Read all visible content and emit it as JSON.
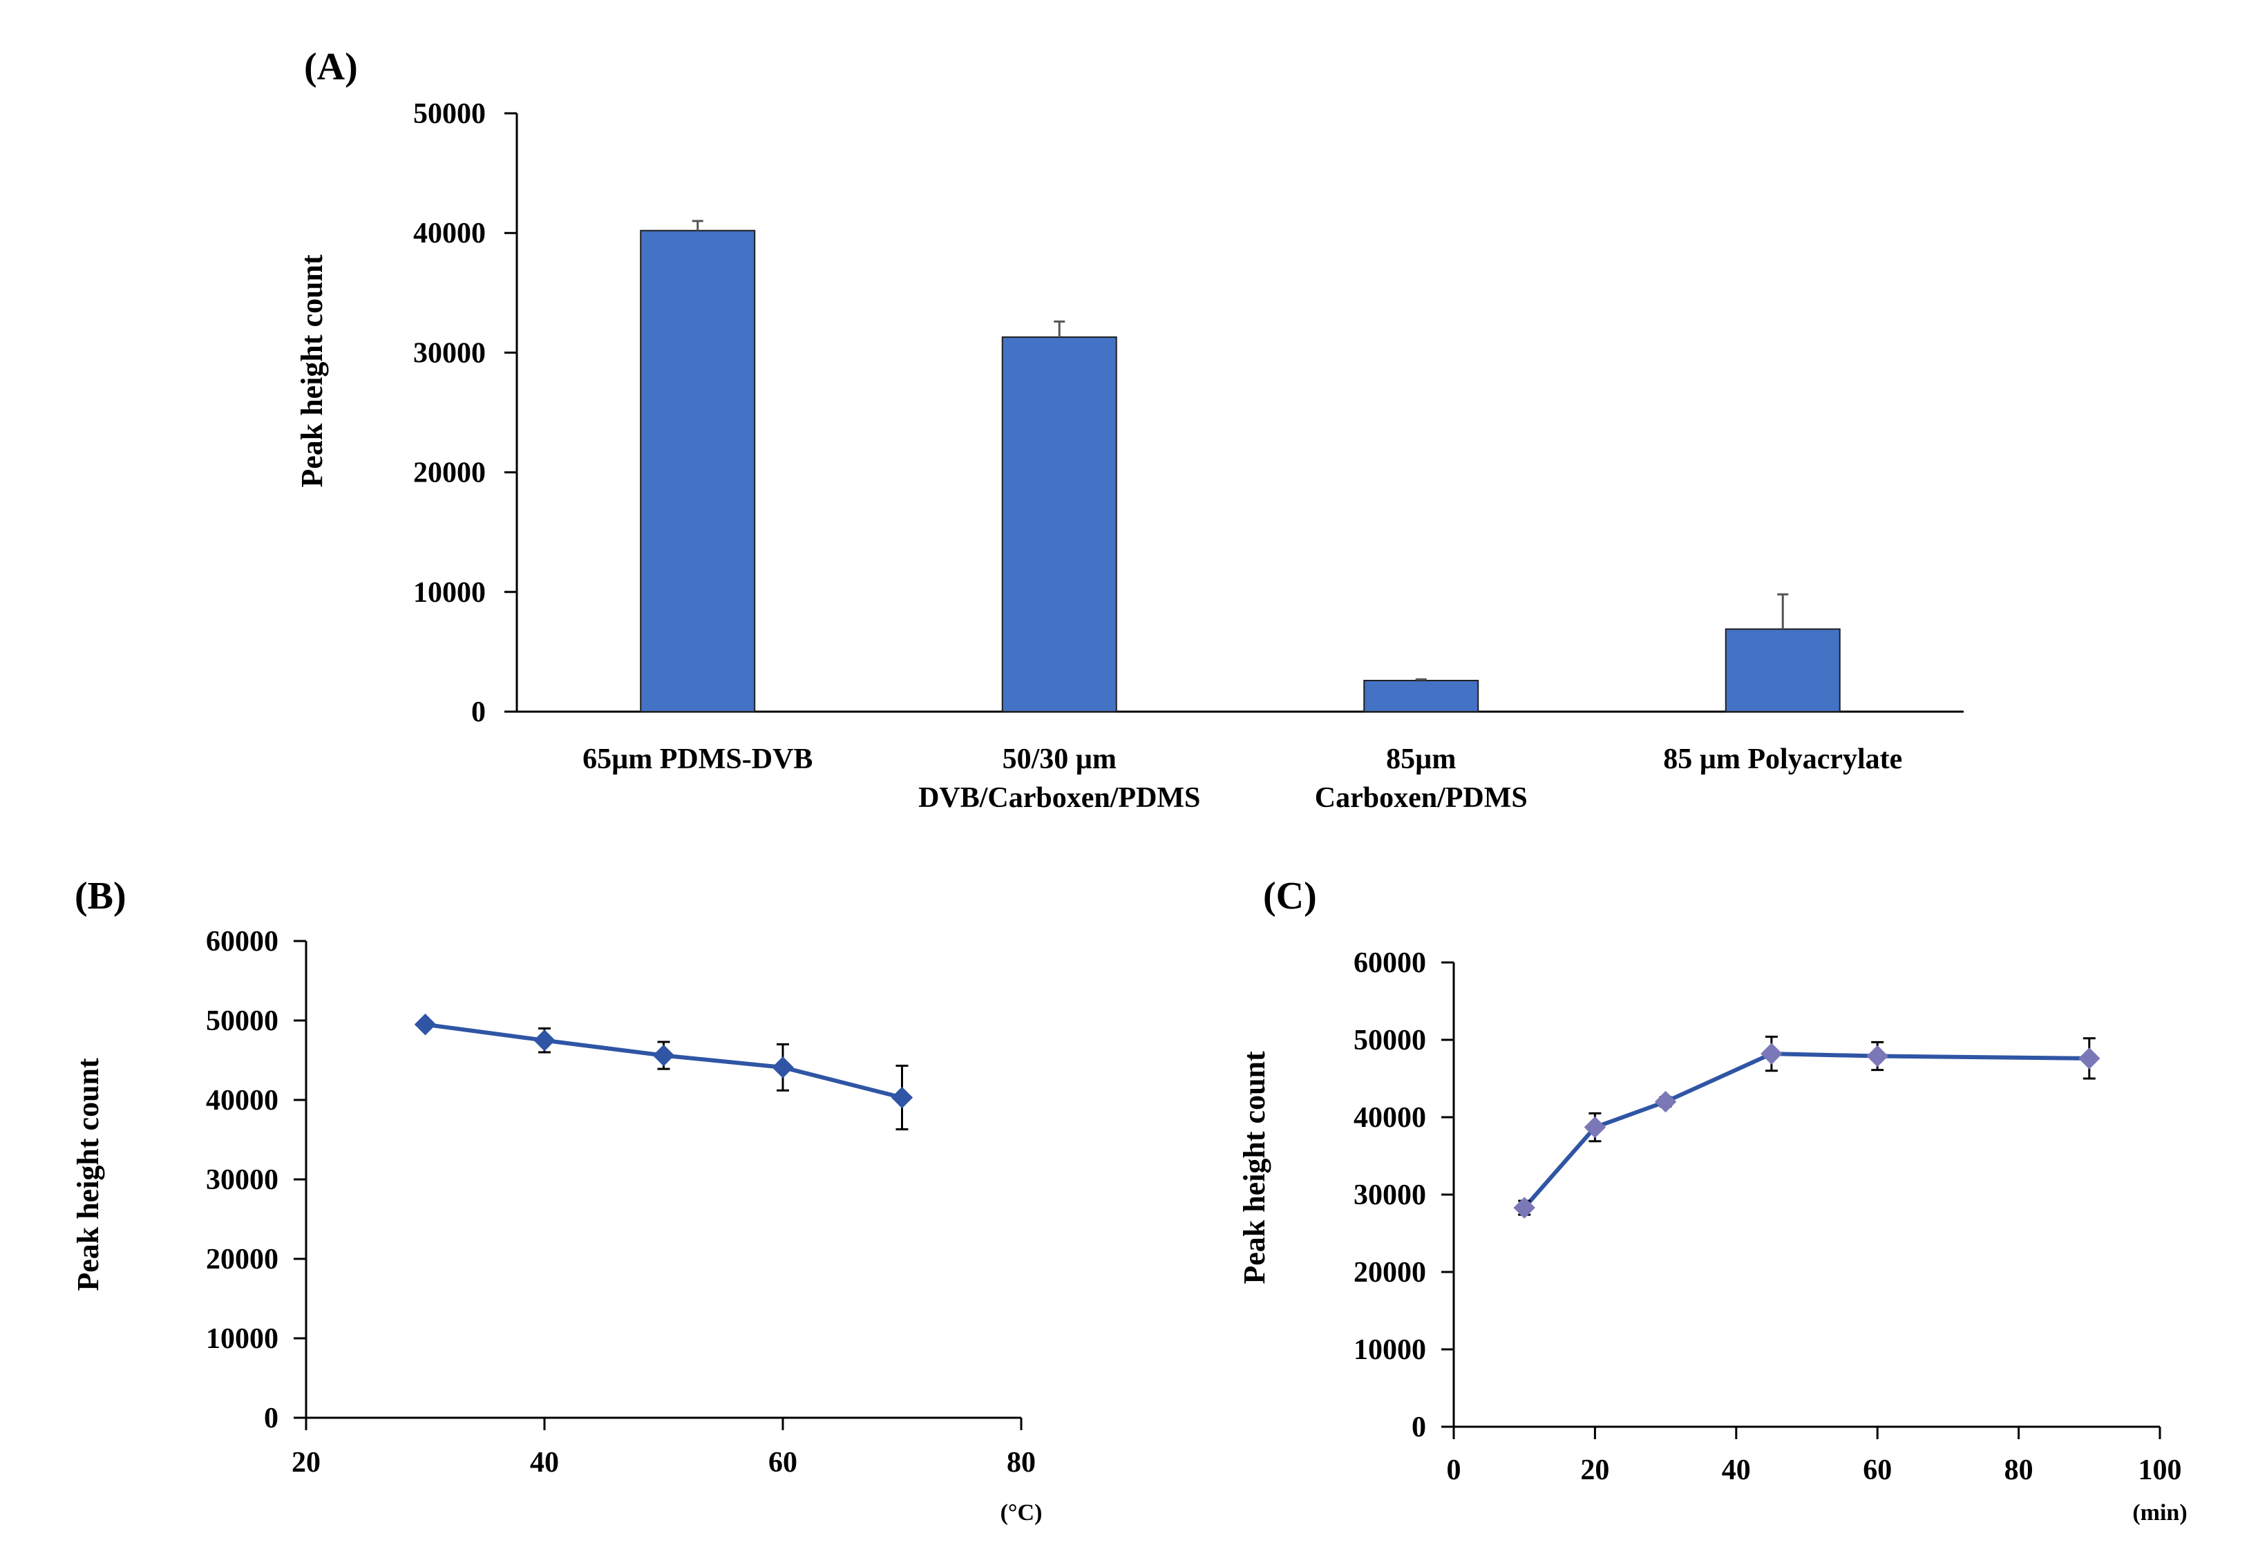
{
  "chart_data": [
    {
      "panel_label": "(A)",
      "type": "bar",
      "categories": [
        [
          "65µm PDMS-DVB"
        ],
        [
          "50/30 µm",
          "DVB/Carboxen/PDMS"
        ],
        [
          "85µm",
          "Carboxen/PDMS"
        ],
        [
          "85 µm Polyacrylate"
        ]
      ],
      "values": [
        40200,
        31300,
        2600,
        6900
      ],
      "errors": [
        800,
        1300,
        100,
        2900
      ],
      "ylabel": "Peak height count",
      "xlabel": "",
      "ylim": [
        0,
        50000
      ],
      "yticks": [
        0,
        10000,
        20000,
        30000,
        40000,
        50000
      ],
      "bar_color": "#4472C4"
    },
    {
      "panel_label": "(B)",
      "type": "line",
      "x": [
        30,
        40,
        50,
        60,
        70
      ],
      "y": [
        49500,
        47500,
        45600,
        44100,
        40300
      ],
      "errors": [
        400,
        1500,
        1700,
        2900,
        4000
      ],
      "ylabel": "Peak height count",
      "x_unit": "(°C)",
      "xlim": [
        20,
        80
      ],
      "xticks": [
        20,
        40,
        60,
        80
      ],
      "ylim": [
        0,
        60000
      ],
      "yticks": [
        0,
        10000,
        20000,
        30000,
        40000,
        50000,
        60000
      ],
      "line_color": "#2F55A4",
      "marker_color": "#2F55A4"
    },
    {
      "panel_label": "(C)",
      "type": "line",
      "x": [
        10,
        20,
        30,
        45,
        60,
        90
      ],
      "y": [
        28300,
        38700,
        42000,
        48200,
        47900,
        47600
      ],
      "errors": [
        900,
        1800,
        600,
        2200,
        1800,
        2600
      ],
      "ylabel": "Peak height count",
      "x_unit": "(min)",
      "xlim": [
        0,
        100
      ],
      "xticks": [
        0,
        20,
        40,
        60,
        80,
        100
      ],
      "ylim": [
        0,
        60000
      ],
      "yticks": [
        0,
        10000,
        20000,
        30000,
        40000,
        50000,
        60000
      ],
      "line_color": "#2F55A4",
      "marker_color": "#7B78B8"
    }
  ]
}
